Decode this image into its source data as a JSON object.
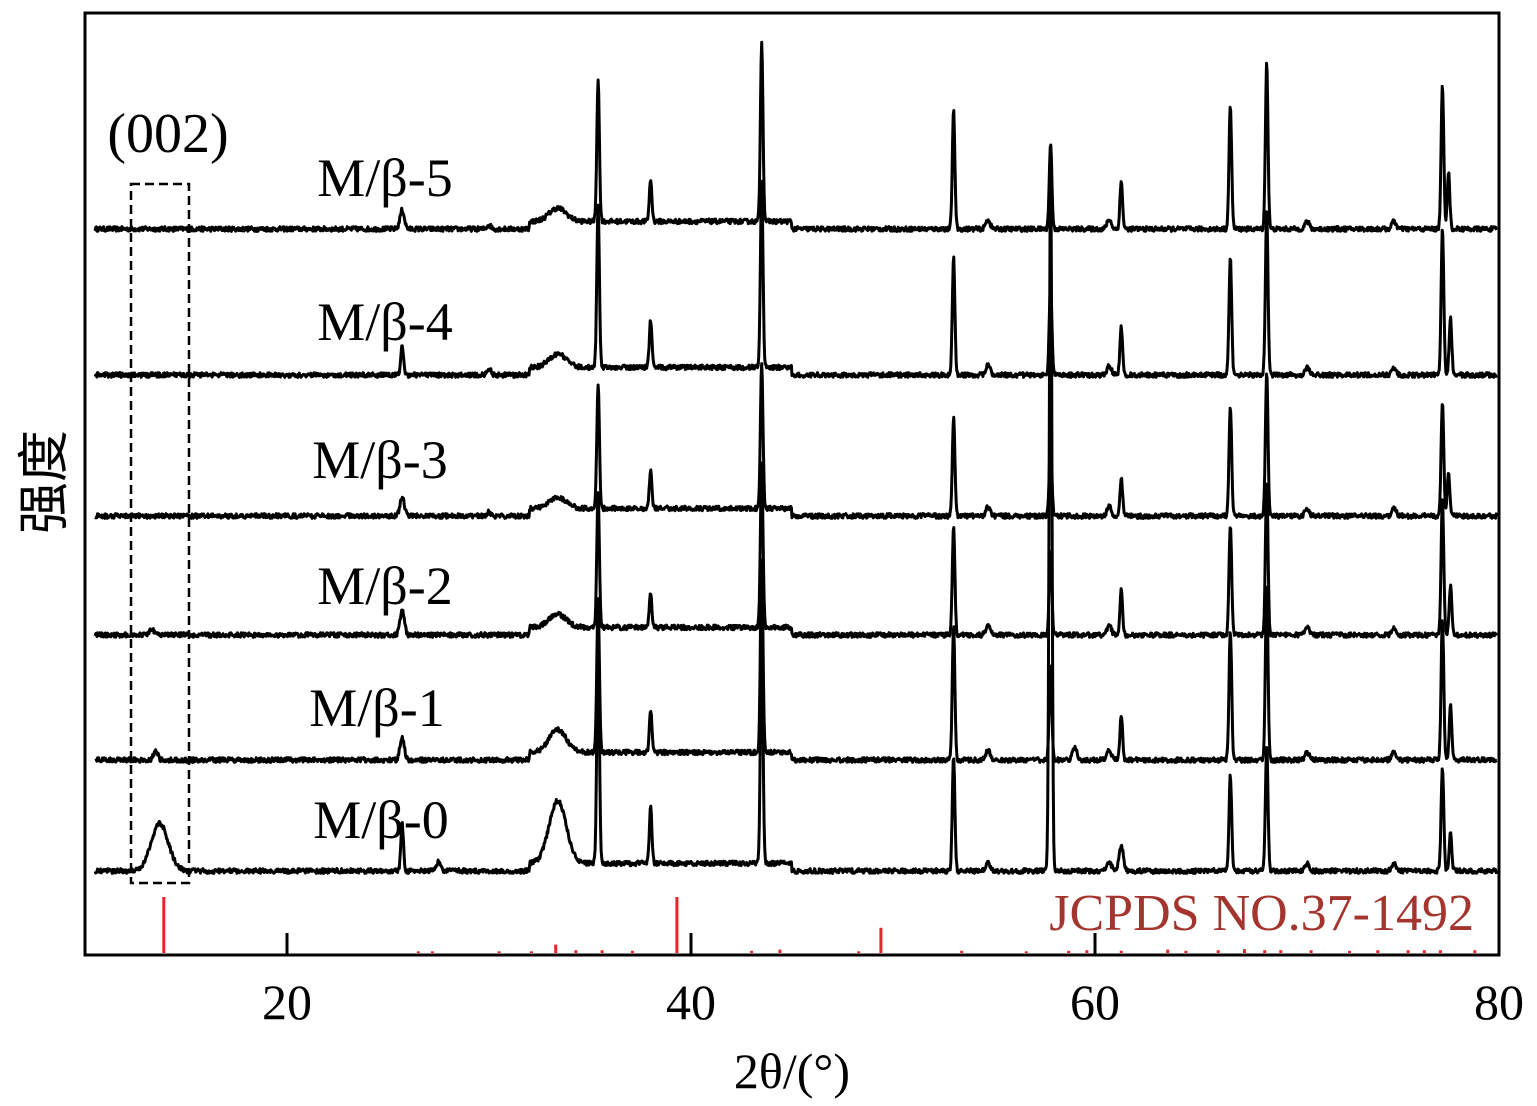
{
  "chart_data": {
    "type": "line",
    "xlabel": "2θ/(°)",
    "ylabel": "强度",
    "xlim": [
      10,
      80
    ],
    "xticks": [
      20,
      40,
      60,
      80
    ],
    "y_ticks_shown": false,
    "grid": false,
    "annotations": {
      "box_label": "(002)",
      "box_x_range": [
        12,
        15
      ],
      "reference_label": "JCPDS NO.37-1492"
    },
    "colors": {
      "traces": "#000000",
      "reference": "#e8262a",
      "reference_label": "#a4352e",
      "axes": "#000000"
    },
    "series": [
      {
        "name": "M/β-5",
        "peaks": [
          [
            25.7,
            0.1
          ],
          [
            30,
            0.02
          ],
          [
            33.4,
            0.07
          ],
          [
            35.4,
            0.75
          ],
          [
            38,
            0.22
          ],
          [
            43.5,
            0.95
          ],
          [
            53,
            0.62
          ],
          [
            54.7,
            0.05
          ],
          [
            57.8,
            0.45
          ],
          [
            60.7,
            0.05
          ],
          [
            61.3,
            0.25
          ],
          [
            66.7,
            0.65
          ],
          [
            68.5,
            0.88
          ],
          [
            70.5,
            0.04
          ],
          [
            74.8,
            0.04
          ],
          [
            77.2,
            0.75
          ],
          [
            77.5,
            0.3
          ]
        ]
      },
      {
        "name": "M/β-4",
        "peaks": [
          [
            25.7,
            0.16
          ],
          [
            30,
            0.03
          ],
          [
            33.4,
            0.07
          ],
          [
            35.4,
            0.85
          ],
          [
            38,
            0.25
          ],
          [
            43.5,
            0.97
          ],
          [
            53,
            0.62
          ],
          [
            54.7,
            0.05
          ],
          [
            57.8,
            0.48
          ],
          [
            60.7,
            0.05
          ],
          [
            61.3,
            0.25
          ],
          [
            66.7,
            0.62
          ],
          [
            68.5,
            0.87
          ],
          [
            70.5,
            0.04
          ],
          [
            74.8,
            0.04
          ],
          [
            77.2,
            0.77
          ],
          [
            77.6,
            0.3
          ]
        ]
      },
      {
        "name": "M/β-3",
        "peaks": [
          [
            25.7,
            0.1
          ],
          [
            30,
            0.02
          ],
          [
            33.4,
            0.06
          ],
          [
            35.4,
            0.66
          ],
          [
            38,
            0.2
          ],
          [
            43.5,
            0.76
          ],
          [
            53,
            0.52
          ],
          [
            54.7,
            0.05
          ],
          [
            57.8,
            0.4
          ],
          [
            60.7,
            0.05
          ],
          [
            61.3,
            0.2
          ],
          [
            66.7,
            0.58
          ],
          [
            68.5,
            0.76
          ],
          [
            70.5,
            0.04
          ],
          [
            74.8,
            0.04
          ],
          [
            77.2,
            0.6
          ],
          [
            77.5,
            0.22
          ]
        ]
      },
      {
        "name": "M/β-2",
        "peaks": [
          [
            13.3,
            0.03
          ],
          [
            25.7,
            0.13
          ],
          [
            33.4,
            0.07
          ],
          [
            35.4,
            0.71
          ],
          [
            38,
            0.18
          ],
          [
            43.5,
            0.87
          ],
          [
            53,
            0.57
          ],
          [
            54.7,
            0.05
          ],
          [
            57.8,
            0.45
          ],
          [
            60.7,
            0.05
          ],
          [
            61.3,
            0.24
          ],
          [
            66.7,
            0.58
          ],
          [
            68.5,
            0.81
          ],
          [
            70.5,
            0.04
          ],
          [
            74.8,
            0.04
          ],
          [
            77.2,
            0.71
          ],
          [
            77.6,
            0.26
          ]
        ]
      },
      {
        "name": "M/β-1",
        "peaks": [
          [
            13.5,
            0.05
          ],
          [
            25.7,
            0.12
          ],
          [
            33.4,
            0.12
          ],
          [
            35.4,
            0.8
          ],
          [
            38,
            0.23
          ],
          [
            43.5,
            1.0
          ],
          [
            53,
            0.71
          ],
          [
            54.7,
            0.05
          ],
          [
            57.8,
            0.5
          ],
          [
            59,
            0.07
          ],
          [
            60.7,
            0.05
          ],
          [
            61.3,
            0.24
          ],
          [
            66.7,
            0.69
          ],
          [
            68.5,
            0.93
          ],
          [
            70.5,
            0.04
          ],
          [
            74.8,
            0.04
          ],
          [
            77.2,
            0.74
          ],
          [
            77.6,
            0.29
          ]
        ]
      },
      {
        "name": "M/β-0",
        "peaks": [
          [
            13.7,
            0.25
          ],
          [
            25.7,
            0.25
          ],
          [
            27.5,
            0.05
          ],
          [
            33.4,
            0.33
          ],
          [
            35.4,
            1.2
          ],
          [
            38,
            0.3
          ],
          [
            43.5,
            1.25
          ],
          [
            53,
            0.6
          ],
          [
            54.7,
            0.05
          ],
          [
            57.8,
            3.8
          ],
          [
            60.7,
            0.05
          ],
          [
            61.3,
            0.13
          ],
          [
            66.7,
            0.5
          ],
          [
            68.5,
            0.67
          ],
          [
            70.5,
            0.04
          ],
          [
            74.8,
            0.04
          ],
          [
            77.2,
            0.55
          ],
          [
            77.6,
            0.2
          ]
        ]
      }
    ],
    "reference": {
      "name": "JCPDS NO.37-1492",
      "x": [
        13.9,
        26.5,
        27.2,
        30.5,
        32.1,
        33.3,
        34.3,
        35.6,
        37.1,
        39.3,
        43.0,
        44.4,
        48.3,
        49.4,
        53.4,
        56.6,
        58.7,
        59.6,
        61.3,
        63.6,
        64.5,
        66.1,
        67.4,
        68.4,
        69.2,
        70.7,
        72.6,
        74.0,
        75.5,
        76.3,
        77.1,
        78.8
      ],
      "intensity": [
        1.0,
        0.03,
        0.03,
        0.03,
        0.03,
        0.15,
        0.05,
        0.05,
        0.04,
        1.0,
        0.04,
        0.06,
        0.03,
        0.45,
        0.04,
        0.03,
        0.04,
        0.05,
        0.04,
        0.06,
        0.04,
        0.05,
        0.07,
        0.05,
        0.05,
        0.05,
        0.04,
        0.05,
        0.05,
        0.05,
        0.05,
        0.05
      ]
    }
  }
}
